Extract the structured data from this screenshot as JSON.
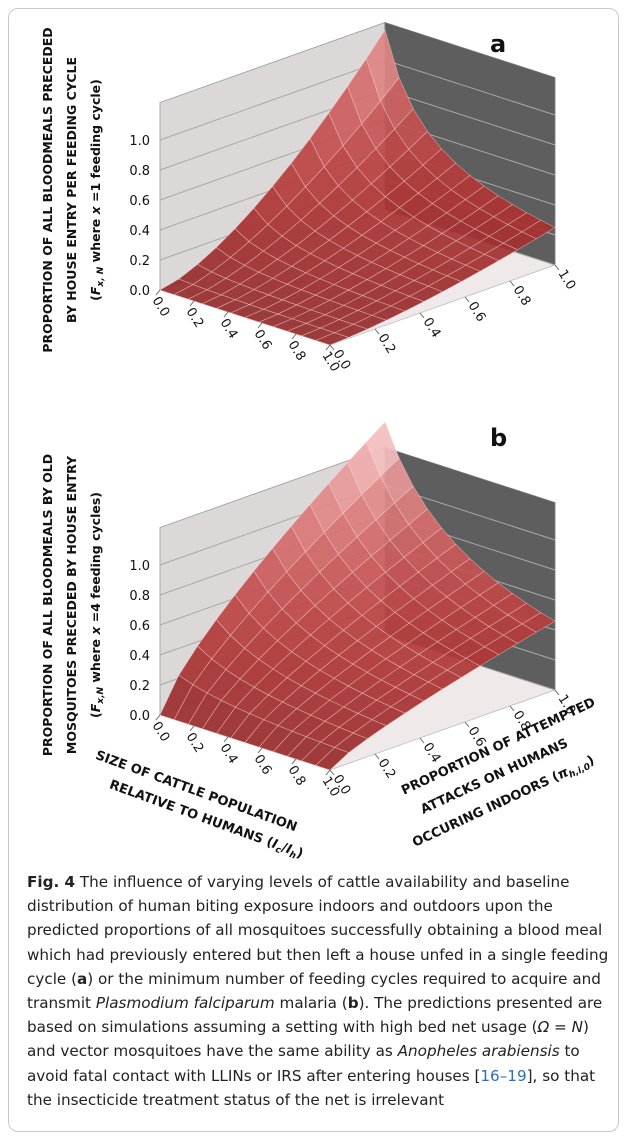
{
  "panels": [
    {
      "letter": "a",
      "z_label": {
        "line1": "PROPORTION OF ALL BLOODMEALS PRECEDED",
        "line2": "BY HOUSE ENTRY PER FEEDING CYCLE",
        "line3": [
          "(",
          "F",
          "x, N",
          " where ",
          "x",
          " =1 feeding cycle)"
        ]
      },
      "z_ticks": [
        {
          "value": 0,
          "label": "0.0"
        },
        {
          "value": 0.2,
          "label": "0.2"
        },
        {
          "value": 0.4,
          "label": "0.4"
        },
        {
          "value": 0.6,
          "label": "0.6"
        },
        {
          "value": 0.8,
          "label": "0.8"
        },
        {
          "value": 1,
          "label": "1.0"
        }
      ],
      "x_ticks": [
        {
          "value": 0,
          "label": "0.0"
        },
        {
          "value": 0.2,
          "label": "0.2"
        },
        {
          "value": 0.4,
          "label": "0.4"
        },
        {
          "value": 0.6,
          "label": "0.6"
        },
        {
          "value": 0.8,
          "label": "0.8"
        },
        {
          "value": 1,
          "label": "1.0"
        }
      ],
      "y_ticks": [
        {
          "value": 0,
          "label": "0.0"
        },
        {
          "value": 0.2,
          "label": "0.2"
        },
        {
          "value": 0.4,
          "label": "0.4"
        },
        {
          "value": 0.6,
          "label": "0.6"
        },
        {
          "value": 0.8,
          "label": "0.8"
        },
        {
          "value": 1,
          "label": "1.0"
        }
      ]
    },
    {
      "letter": "b",
      "z_label": {
        "line1": "PROPORTION OF ALL BLOODMEALS BY OLD",
        "line2": "MOSQUITOES PRECEDED BY HOUSE ENTRY",
        "line3": [
          "(",
          "F",
          "x,N",
          " where ",
          "x",
          " =4 feeding cycles)"
        ]
      },
      "z_ticks": [
        {
          "value": 0,
          "label": "0.0"
        },
        {
          "value": 0.2,
          "label": "0.2"
        },
        {
          "value": 0.4,
          "label": "0.4"
        },
        {
          "value": 0.6,
          "label": "0.6"
        },
        {
          "value": 0.8,
          "label": "0.8"
        },
        {
          "value": 1,
          "label": "1.0"
        }
      ],
      "x_ticks": [
        {
          "value": 0,
          "label": "0.0"
        },
        {
          "value": 0.2,
          "label": "0.2"
        },
        {
          "value": 0.4,
          "label": "0.4"
        },
        {
          "value": 0.6,
          "label": "0.6"
        },
        {
          "value": 0.8,
          "label": "0.8"
        },
        {
          "value": 1,
          "label": "1.0"
        }
      ],
      "y_ticks": [
        {
          "value": 0,
          "label": "0.0"
        },
        {
          "value": 0.2,
          "label": "0.2"
        },
        {
          "value": 0.4,
          "label": "0.4"
        },
        {
          "value": 0.6,
          "label": "0.6"
        },
        {
          "value": 0.8,
          "label": "0.8"
        },
        {
          "value": 1,
          "label": "1.0"
        }
      ],
      "x_title": {
        "line1": "SIZE OF CATTLE POPULATION",
        "line2": [
          "RELATIVE TO HUMANS (",
          "I",
          "c",
          "/",
          "I",
          "h",
          ")"
        ]
      },
      "y_title": {
        "line1": "PROPORTION OF ATTEMPTED",
        "line2": "ATTACKS ON HUMANS",
        "line3": [
          "OCCURING INDOORS (",
          "π",
          "h,i,0",
          ")"
        ]
      }
    }
  ],
  "caption": {
    "parts": [
      "Fig. 4",
      " The influence of varying levels of cattle availability and baseline distribution of human biting exposure indoors and outdoors upon the predicted proportions of all mosquitoes successfully obtaining a blood meal which had previously entered but then left a house unfed in a single feeding cycle (",
      "a",
      ") or the minimum number of feeding cycles required to acquire and transmit ",
      "Plasmodium falciparum",
      " malaria (",
      "b",
      "). The predictions presented are based on simulations assuming a setting with high bed net usage (",
      "Ω = N",
      ") and vector mosquitoes have the same ability as ",
      "Anopheles arabiensis",
      " to avoid fatal contact with LLINs or IRS after entering houses [",
      "16–19",
      "], so that the insecticide treatment status of the net is irrelevant"
    ]
  }
}
